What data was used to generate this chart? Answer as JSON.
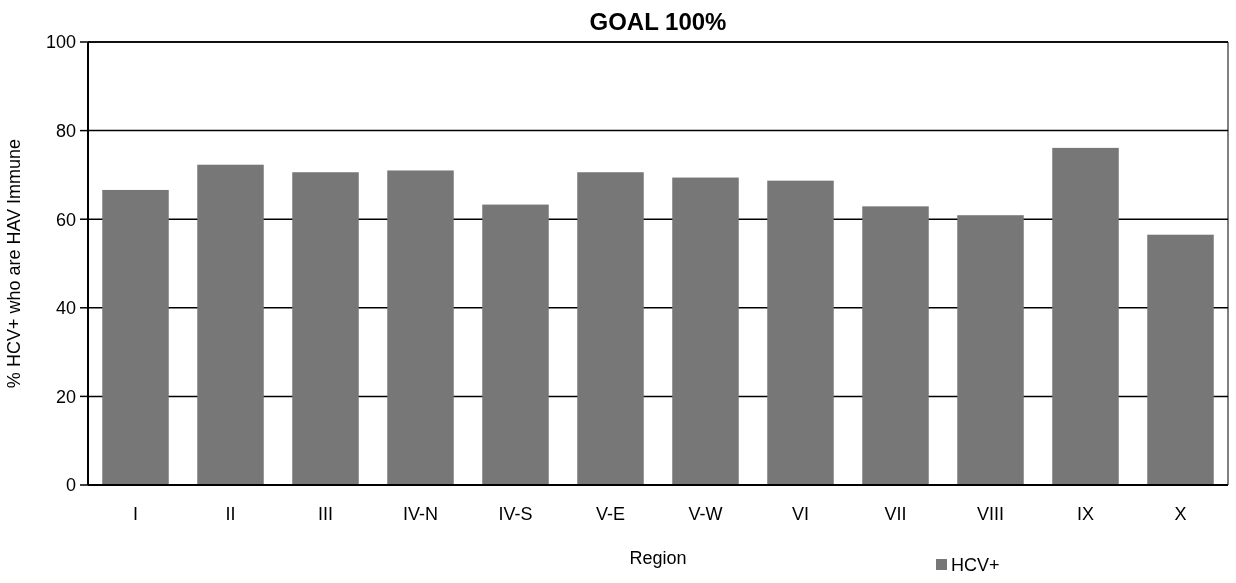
{
  "chart_data": {
    "type": "bar",
    "title": "GOAL 100%",
    "xlabel": "Region",
    "ylabel": "% HCV+ who are HAV Immune",
    "categories": [
      "I",
      "II",
      "III",
      "IV-N",
      "IV-S",
      "V-E",
      "V-W",
      "VI",
      "VII",
      "VIII",
      "IX",
      "X"
    ],
    "series": [
      {
        "name": "HCV+",
        "color": "#777777",
        "values": [
          66.6,
          72.3,
          70.6,
          71.0,
          63.3,
          70.6,
          69.4,
          68.7,
          62.9,
          60.9,
          76.1,
          56.5
        ]
      }
    ],
    "ylim": [
      0,
      100
    ],
    "yticks": [
      0,
      20,
      40,
      60,
      80,
      100
    ],
    "grid": "y",
    "legend": "bottom right"
  }
}
